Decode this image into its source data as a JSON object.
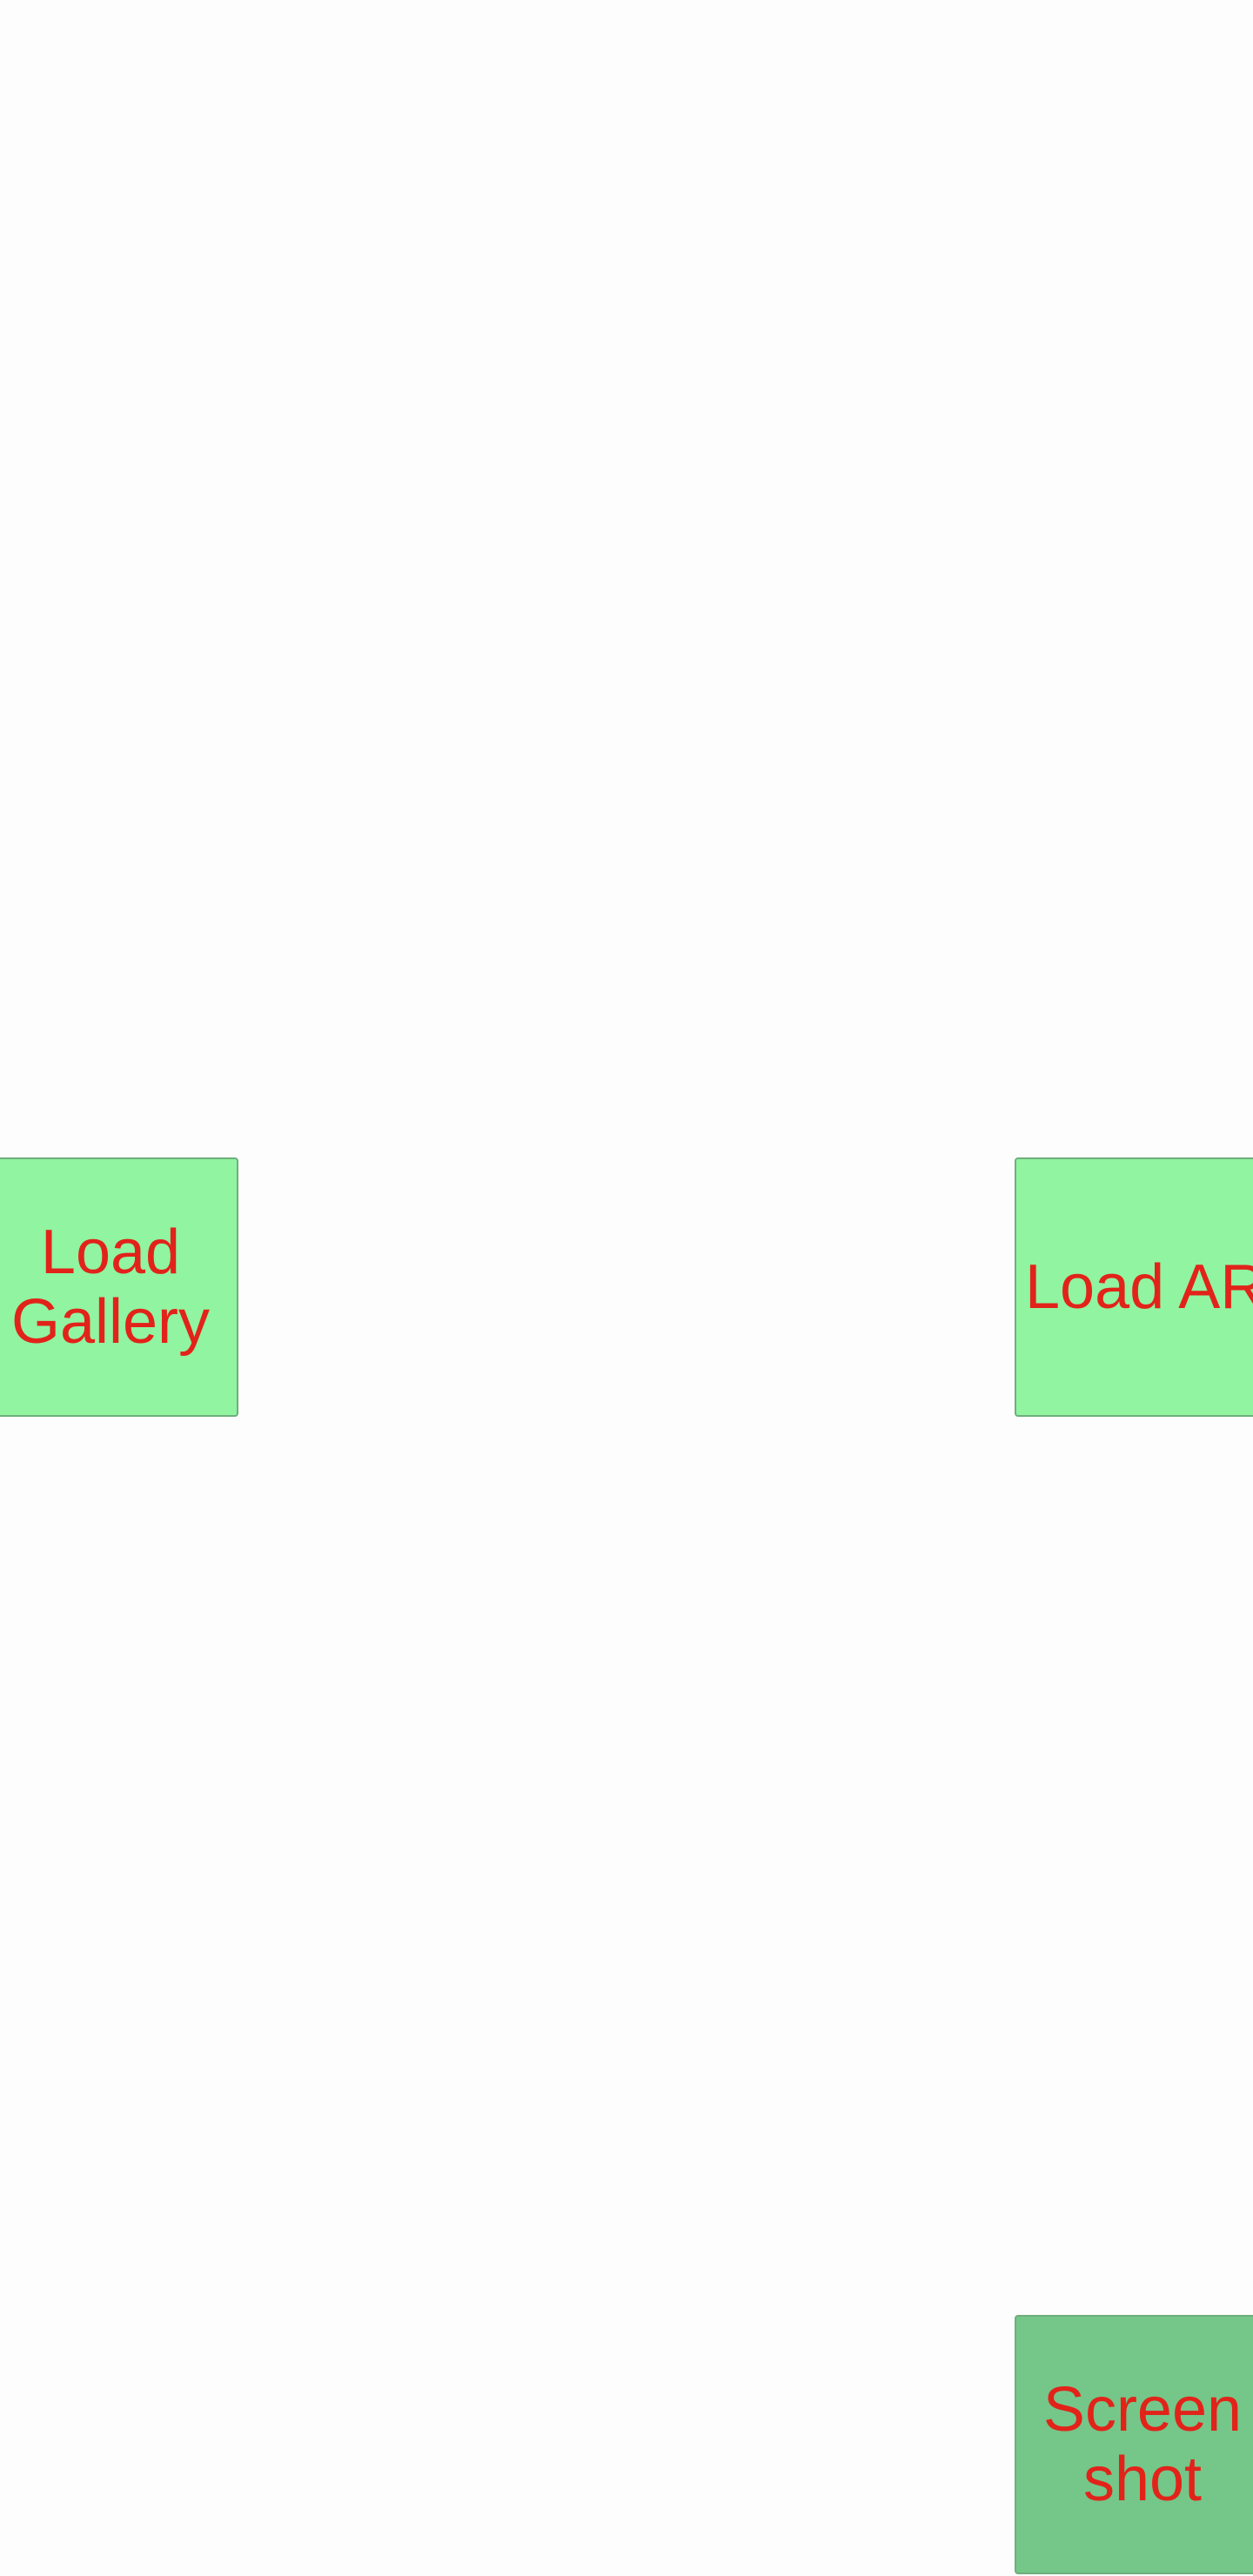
{
  "buttons": {
    "load_gallery": {
      "line1": "Load",
      "line2": "Gallery"
    },
    "load_ar": {
      "label": "Load AR"
    },
    "screenshot": {
      "line1": "Screen",
      "line2": "shot"
    }
  },
  "colors": {
    "background": "#fdfdfd",
    "button_green": "#90f4a1",
    "button_green_pressed": "#75c689",
    "label_red": "#e2231a"
  }
}
